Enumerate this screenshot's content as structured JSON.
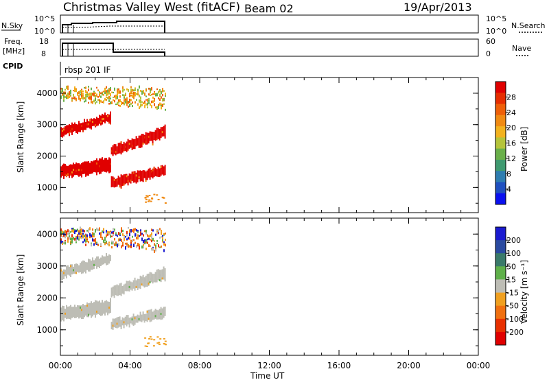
{
  "header": {
    "station": "Christmas Valley West (fitACF)",
    "beam": "Beam 02",
    "date": "19/Apr/2013"
  },
  "strips": {
    "nsky": {
      "label": "N.Sky",
      "left_ticks": [
        "10^5",
        "10^0"
      ],
      "right_ticks": [
        "10^5",
        "10^0"
      ],
      "right_label": "N.Search"
    },
    "freq": {
      "label_line1": "Freq.",
      "label_line2": "[MHz]",
      "left_ticks": [
        "18",
        "8"
      ],
      "right_ticks": [
        "60",
        "0"
      ],
      "right_label": "Nave"
    },
    "cpid": {
      "label": "CPID",
      "value": "rbsp 201 IF"
    }
  },
  "colors": {
    "power_red": "#ee2200",
    "power_orange": "#f07a10",
    "velocity_ground_gray": "#bdbdb5",
    "velocity_orange": "#f0a020"
  },
  "chart_data": [
    {
      "type": "heatmap",
      "panel": "power",
      "ylabel": "Slant Range [km]",
      "yticks": [
        "1000",
        "2000",
        "3000",
        "4000"
      ],
      "ylim": [
        200,
        4500
      ],
      "xlim_hours": [
        0,
        24
      ],
      "data_extent_hours": [
        0,
        6
      ],
      "colorbar": {
        "label": "Power [dB]",
        "ticks": [
          "4",
          "8",
          "12",
          "16",
          "20",
          "24",
          "28"
        ],
        "colors": [
          "#0a10f0",
          "#1f50c0",
          "#2e7db0",
          "#3f9a70",
          "#6ab04a",
          "#b5c43a",
          "#f2b21e",
          "#f08a12",
          "#ee5f08",
          "#e62d00",
          "#e00000"
        ]
      },
      "bands": [
        {
          "x": [
            0.0,
            2.9
          ],
          "y_start": [
            1300,
            1700
          ],
          "y_end": [
            1500,
            1950
          ],
          "level": "high"
        },
        {
          "x": [
            2.9,
            6.0
          ],
          "y_start": [
            1000,
            1300
          ],
          "y_end": [
            1400,
            1700
          ],
          "level": "high"
        },
        {
          "x": [
            0.0,
            2.9
          ],
          "y_start": [
            2600,
            2900
          ],
          "y_end": [
            3100,
            3400
          ],
          "level": "high"
        },
        {
          "x": [
            2.9,
            6.0
          ],
          "y_start": [
            2000,
            2300
          ],
          "y_end": [
            2600,
            2950
          ],
          "level": "high"
        },
        {
          "x": [
            0.0,
            6.0
          ],
          "y_start": [
            3800,
            4200
          ],
          "y_end": [
            3500,
            4200
          ],
          "level": "medium"
        }
      ]
    },
    {
      "type": "heatmap",
      "panel": "velocity",
      "ylabel": "Slant Range [km]",
      "yticks": [
        "1000",
        "2000",
        "3000",
        "4000"
      ],
      "ylim": [
        200,
        4500
      ],
      "xlim_hours": [
        0,
        24
      ],
      "data_extent_hours": [
        0,
        6
      ],
      "colorbar": {
        "label": "Velocity [m s⁻¹]",
        "ticks": [
          "200",
          "100",
          "50",
          "15",
          "-15",
          "-50",
          "-100",
          "-200"
        ],
        "colors": [
          "#1a1ad0",
          "#2a4aa0",
          "#3a7a6a",
          "#5fb04a",
          "#bdbdb5",
          "#f0a020",
          "#f07010",
          "#e83000",
          "#e00000"
        ]
      },
      "bands": [
        {
          "x": [
            0.0,
            2.9
          ],
          "y_start": [
            1300,
            1700
          ],
          "y_end": [
            1500,
            1950
          ],
          "level": "ground"
        },
        {
          "x": [
            2.9,
            6.0
          ],
          "y_start": [
            1000,
            1300
          ],
          "y_end": [
            1400,
            1700
          ],
          "level": "ground"
        },
        {
          "x": [
            0.0,
            2.9
          ],
          "y_start": [
            2600,
            2900
          ],
          "y_end": [
            3100,
            3400
          ],
          "level": "ground"
        },
        {
          "x": [
            2.9,
            6.0
          ],
          "y_start": [
            2000,
            2300
          ],
          "y_end": [
            2600,
            2950
          ],
          "level": "ground"
        },
        {
          "x": [
            0.0,
            6.0
          ],
          "y_start": [
            3800,
            4200
          ],
          "y_end": [
            3500,
            4200
          ],
          "level": "scatter"
        }
      ]
    }
  ],
  "time_axis": {
    "label": "Time UT",
    "ticks": [
      "00:00",
      "04:00",
      "08:00",
      "12:00",
      "16:00",
      "20:00",
      "00:00"
    ]
  }
}
